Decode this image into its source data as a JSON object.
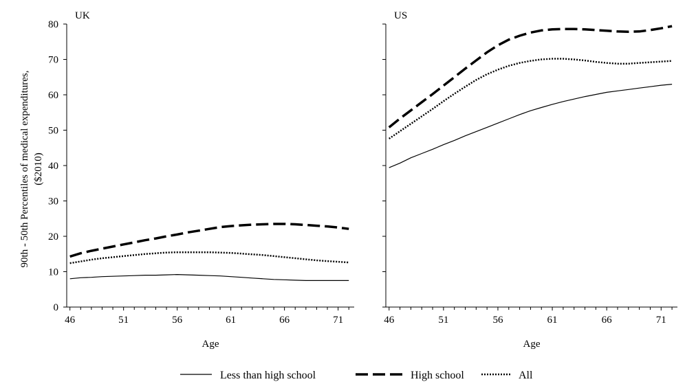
{
  "chart_data": [
    {
      "type": "line",
      "title": "UK",
      "xlabel": "Age",
      "ylabel": "90th - 50th Percentiles of medical expenditures, ($2010)",
      "xlim": [
        45.7,
        72.5
      ],
      "ylim": [
        0,
        80
      ],
      "xticks": [
        46,
        51,
        56,
        61,
        66,
        71
      ],
      "yticks": [
        0,
        10,
        20,
        30,
        40,
        50,
        60,
        70,
        80
      ],
      "grid": false,
      "x": [
        46,
        47,
        48,
        49,
        50,
        51,
        52,
        53,
        54,
        55,
        56,
        57,
        58,
        59,
        60,
        61,
        62,
        63,
        64,
        65,
        66,
        67,
        68,
        69,
        70,
        71,
        72
      ],
      "series": [
        {
          "name": "Less than high school",
          "style": "solid",
          "values": [
            8.0,
            8.3,
            8.4,
            8.6,
            8.7,
            8.8,
            8.9,
            9.0,
            9.0,
            9.1,
            9.2,
            9.1,
            9.0,
            8.9,
            8.8,
            8.6,
            8.4,
            8.2,
            8.0,
            7.8,
            7.7,
            7.6,
            7.5,
            7.5,
            7.5,
            7.5,
            7.5
          ]
        },
        {
          "name": "High school",
          "style": "dashed",
          "values": [
            14.3,
            15.2,
            15.9,
            16.5,
            17.1,
            17.7,
            18.3,
            18.9,
            19.4,
            20.0,
            20.5,
            21.1,
            21.6,
            22.1,
            22.6,
            22.9,
            23.1,
            23.3,
            23.4,
            23.5,
            23.5,
            23.4,
            23.2,
            23.0,
            22.8,
            22.5,
            22.1
          ]
        },
        {
          "name": "All",
          "style": "dotted",
          "values": [
            12.4,
            12.9,
            13.4,
            13.8,
            14.1,
            14.4,
            14.7,
            15.0,
            15.2,
            15.4,
            15.5,
            15.5,
            15.5,
            15.5,
            15.4,
            15.3,
            15.1,
            14.9,
            14.7,
            14.4,
            14.1,
            13.8,
            13.5,
            13.2,
            13.0,
            12.8,
            12.6
          ]
        }
      ]
    },
    {
      "type": "line",
      "title": "US",
      "xlabel": "Age",
      "ylabel": "",
      "xlim": [
        45.7,
        72.5
      ],
      "ylim": [
        0,
        80
      ],
      "xticks": [
        46,
        51,
        56,
        61,
        66,
        71
      ],
      "yticks": [
        0,
        10,
        20,
        30,
        40,
        50,
        60,
        70,
        80
      ],
      "grid": false,
      "x": [
        46,
        47,
        48,
        49,
        50,
        51,
        52,
        53,
        54,
        55,
        56,
        57,
        58,
        59,
        60,
        61,
        62,
        63,
        64,
        65,
        66,
        67,
        68,
        69,
        70,
        71,
        72
      ],
      "series": [
        {
          "name": "Less than high school",
          "style": "solid",
          "values": [
            39.4,
            40.7,
            42.2,
            43.4,
            44.6,
            45.9,
            47.1,
            48.4,
            49.6,
            50.8,
            52.0,
            53.2,
            54.4,
            55.5,
            56.4,
            57.3,
            58.1,
            58.8,
            59.5,
            60.1,
            60.7,
            61.1,
            61.5,
            61.9,
            62.3,
            62.7,
            63.0
          ]
        },
        {
          "name": "High school",
          "style": "dashed",
          "values": [
            50.8,
            53.3,
            55.6,
            57.9,
            60.2,
            62.6,
            65.0,
            67.4,
            69.7,
            72.0,
            74.0,
            75.6,
            76.7,
            77.6,
            78.2,
            78.5,
            78.6,
            78.6,
            78.5,
            78.3,
            78.1,
            77.9,
            77.8,
            77.9,
            78.3,
            78.8,
            79.4
          ]
        },
        {
          "name": "All",
          "style": "dotted",
          "values": [
            47.6,
            49.7,
            51.8,
            53.9,
            56.0,
            58.2,
            60.3,
            62.3,
            64.2,
            65.8,
            67.1,
            68.2,
            69.0,
            69.6,
            70.0,
            70.2,
            70.2,
            70.0,
            69.7,
            69.3,
            69.0,
            68.8,
            68.8,
            69.0,
            69.2,
            69.4,
            69.6
          ]
        }
      ]
    }
  ],
  "legend": {
    "placement": "bottom",
    "items": [
      {
        "label": "Less than high school",
        "style": "solid"
      },
      {
        "label": "High school",
        "style": "dashed"
      },
      {
        "label": "All",
        "style": "dotted"
      }
    ]
  }
}
